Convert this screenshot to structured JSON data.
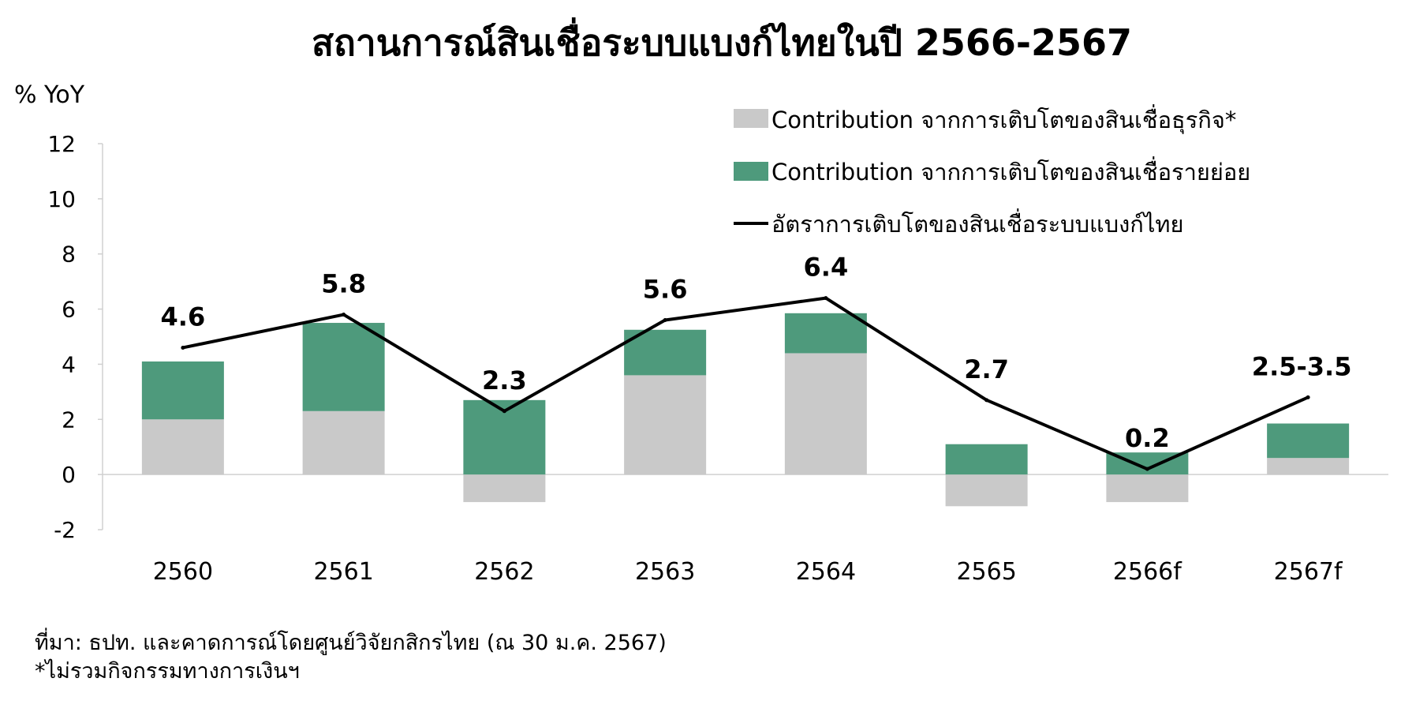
{
  "chart_data": {
    "type": "bar",
    "title": "สถานการณ์สินเชื่อระบบแบงก์ไทยในปี 2566-2567",
    "ylabel": "% YoY",
    "xlabel": "",
    "ylim": [
      -2,
      12
    ],
    "yticks": [
      -2,
      0,
      2,
      4,
      6,
      8,
      10,
      12
    ],
    "stacked": true,
    "grid": false,
    "legend_position": "top-right",
    "categories": [
      "2560",
      "2561",
      "2562",
      "2563",
      "2564",
      "2565",
      "2566f",
      "2567f"
    ],
    "series": [
      {
        "name": "Contribution จากการเติบโตของสินเชื่อธุรกิจ*",
        "type": "bar",
        "color": "#c9c9c9",
        "values": [
          2.0,
          2.3,
          -1.0,
          3.6,
          4.4,
          -1.15,
          -1.0,
          0.6
        ]
      },
      {
        "name": "Contribution จากการเติบโตของสินเชื่อรายย่อย",
        "type": "bar",
        "color": "#4e9a7c",
        "values": [
          2.1,
          3.2,
          2.7,
          1.65,
          1.45,
          1.1,
          0.8,
          1.25
        ]
      },
      {
        "name": "อัตราการเติบโตของสินเชื่อระบบแบงก์ไทย",
        "type": "line",
        "color": "#000000",
        "values": [
          4.6,
          5.8,
          2.3,
          5.6,
          6.4,
          2.7,
          0.2,
          2.8
        ],
        "labels": [
          "4.6",
          "5.8",
          "2.3",
          "5.6",
          "6.4",
          "2.7",
          "0.2",
          "2.5-3.5"
        ]
      }
    ]
  },
  "footer": {
    "source": "ที่มา: ธปท. และคาดการณ์โดยศูนย์วิจัยกสิกรไทย (ณ 30 ม.ค. 2567)",
    "note": "*ไม่รวมกิจกรรมทางการเงินฯ"
  }
}
